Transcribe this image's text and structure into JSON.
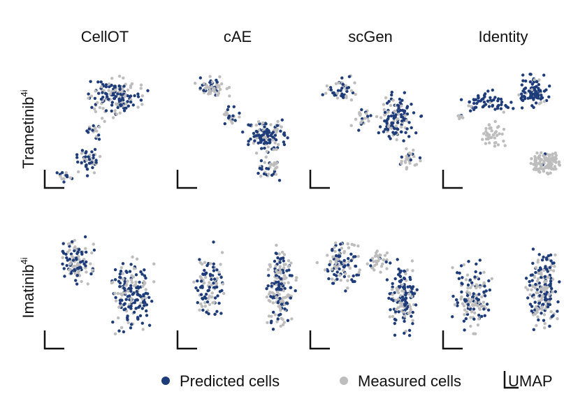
{
  "chart_data": {
    "type": "scatter",
    "columns": [
      "CellOT",
      "cAE",
      "scGen",
      "Identity"
    ],
    "rows": [
      {
        "label": "Trametinib",
        "superscript": "4i"
      },
      {
        "label": "Imatinib",
        "superscript": "4i"
      }
    ],
    "legend": {
      "predicted_label": "Predicted cells",
      "measured_label": "Measured cells",
      "axis_label": "UMAP",
      "placement": "bottom"
    },
    "colors": {
      "predicted": "#1f3c7a",
      "measured": "#bdbdbd",
      "axis": "#111111"
    },
    "panels": [
      {
        "row": 0,
        "col": 0,
        "clusters": [
          {
            "x": [
              0.25,
              0.95
            ],
            "y": [
              0.55,
              0.96
            ],
            "predicted": 90,
            "measured": 70
          },
          {
            "x": [
              0.28,
              0.55
            ],
            "y": [
              0.35,
              0.58
            ],
            "predicted": 10,
            "measured": 10
          },
          {
            "x": [
              0.2,
              0.5
            ],
            "y": [
              0.05,
              0.36
            ],
            "predicted": 28,
            "measured": 20
          },
          {
            "x": [
              0.0,
              0.25
            ],
            "y": [
              0.0,
              0.12
            ],
            "predicted": 8,
            "measured": 6
          }
        ]
      },
      {
        "row": 0,
        "col": 1,
        "clusters": [
          {
            "x": [
              0.05,
              0.48
            ],
            "y": [
              0.72,
              0.98
            ],
            "predicted": 22,
            "measured": 38
          },
          {
            "x": [
              0.3,
              0.55
            ],
            "y": [
              0.45,
              0.75
            ],
            "predicted": 10,
            "measured": 12
          },
          {
            "x": [
              0.5,
              0.98
            ],
            "y": [
              0.2,
              0.62
            ],
            "predicted": 80,
            "measured": 40
          },
          {
            "x": [
              0.62,
              0.92
            ],
            "y": [
              0.0,
              0.25
            ],
            "predicted": 15,
            "measured": 20
          }
        ]
      },
      {
        "row": 0,
        "col": 2,
        "clusters": [
          {
            "x": [
              0.0,
              0.45
            ],
            "y": [
              0.7,
              0.98
            ],
            "predicted": 25,
            "measured": 20
          },
          {
            "x": [
              0.3,
              0.55
            ],
            "y": [
              0.4,
              0.72
            ],
            "predicted": 8,
            "measured": 14
          },
          {
            "x": [
              0.5,
              0.98
            ],
            "y": [
              0.3,
              0.85
            ],
            "predicted": 90,
            "measured": 35
          },
          {
            "x": [
              0.7,
              0.98
            ],
            "y": [
              0.05,
              0.35
            ],
            "predicted": 8,
            "measured": 25
          }
        ]
      },
      {
        "row": 0,
        "col": 3,
        "clusters": [
          {
            "x": [
              0.05,
              0.7
            ],
            "y": [
              0.58,
              0.85
            ],
            "predicted": 55,
            "measured": 5
          },
          {
            "x": [
              0.6,
              0.95
            ],
            "y": [
              0.62,
              0.99
            ],
            "predicted": 85,
            "measured": 10
          },
          {
            "x": [
              0.05,
              0.2
            ],
            "y": [
              0.55,
              0.62
            ],
            "predicted": 2,
            "measured": 8
          },
          {
            "x": [
              0.25,
              0.55
            ],
            "y": [
              0.28,
              0.58
            ],
            "predicted": 0,
            "measured": 40
          },
          {
            "x": [
              0.7,
              1.05
            ],
            "y": [
              0.05,
              0.32
            ],
            "predicted": 2,
            "measured": 110
          }
        ]
      },
      {
        "row": 1,
        "col": 0,
        "clusters": [
          {
            "x": [
              0.02,
              0.45
            ],
            "y": [
              0.45,
              0.98
            ],
            "predicted": 55,
            "measured": 55
          },
          {
            "x": [
              0.5,
              0.98
            ],
            "y": [
              0.0,
              0.85
            ],
            "predicted": 110,
            "measured": 60
          }
        ]
      },
      {
        "row": 1,
        "col": 1,
        "clusters": [
          {
            "x": [
              0.05,
              0.45
            ],
            "y": [
              0.1,
              0.95
            ],
            "predicted": 60,
            "measured": 45
          },
          {
            "x": [
              0.7,
              1.05
            ],
            "y": [
              0.0,
              0.98
            ],
            "predicted": 75,
            "measured": 100
          }
        ]
      },
      {
        "row": 1,
        "col": 2,
        "clusters": [
          {
            "x": [
              0.0,
              0.45
            ],
            "y": [
              0.45,
              0.98
            ],
            "predicted": 55,
            "measured": 55
          },
          {
            "x": [
              0.45,
              0.7
            ],
            "y": [
              0.6,
              0.85
            ],
            "predicted": 5,
            "measured": 30
          },
          {
            "x": [
              0.6,
              0.98
            ],
            "y": [
              0.0,
              0.8
            ],
            "predicted": 95,
            "measured": 50
          }
        ]
      },
      {
        "row": 1,
        "col": 3,
        "clusters": [
          {
            "x": [
              0.0,
              0.45
            ],
            "y": [
              0.0,
              0.82
            ],
            "predicted": 70,
            "measured": 70
          },
          {
            "x": [
              0.65,
              1.05
            ],
            "y": [
              0.0,
              0.98
            ],
            "predicted": 95,
            "measured": 90
          }
        ]
      }
    ]
  }
}
